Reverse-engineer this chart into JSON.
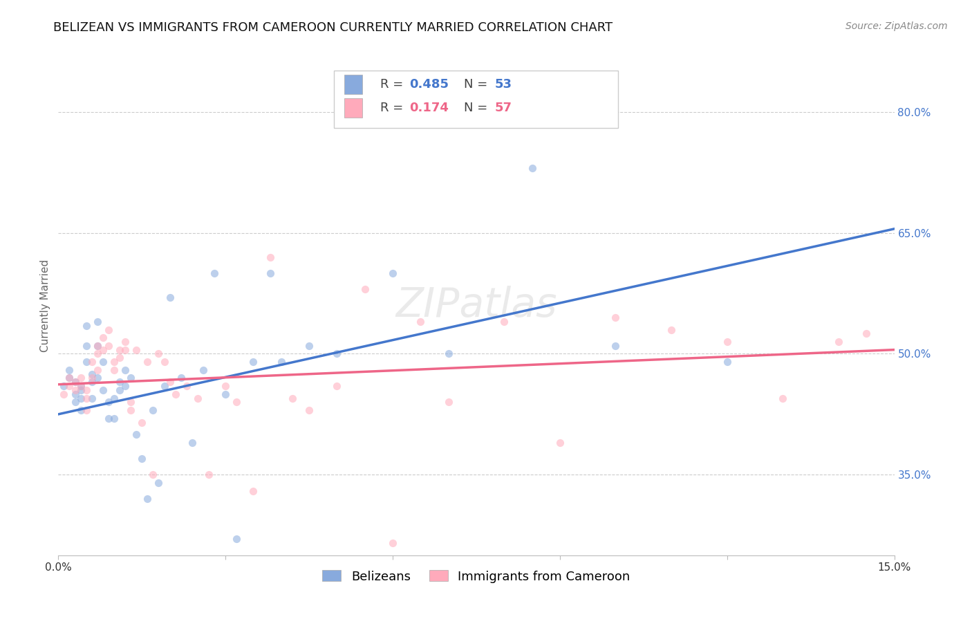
{
  "title": "BELIZEAN VS IMMIGRANTS FROM CAMEROON CURRENTLY MARRIED CORRELATION CHART",
  "source": "Source: ZipAtlas.com",
  "ylabel": "Currently Married",
  "xmin": 0.0,
  "xmax": 0.15,
  "ymin": 0.25,
  "ymax": 0.87,
  "yticks": [
    0.35,
    0.5,
    0.65,
    0.8
  ],
  "ytick_labels": [
    "35.0%",
    "50.0%",
    "65.0%",
    "80.0%"
  ],
  "grid_color": "#cccccc",
  "background_color": "#ffffff",
  "blue_color": "#88aadd",
  "pink_color": "#ffaabb",
  "blue_line_color": "#4477cc",
  "pink_line_color": "#ee6688",
  "blue_label": "Belizeans",
  "pink_label": "Immigrants from Cameroon",
  "blue_R": 0.485,
  "blue_N": 53,
  "pink_R": 0.174,
  "pink_N": 57,
  "blue_scatter_x": [
    0.001,
    0.002,
    0.002,
    0.003,
    0.003,
    0.003,
    0.004,
    0.004,
    0.004,
    0.004,
    0.005,
    0.005,
    0.005,
    0.006,
    0.006,
    0.006,
    0.007,
    0.007,
    0.007,
    0.008,
    0.008,
    0.009,
    0.009,
    0.01,
    0.01,
    0.011,
    0.011,
    0.012,
    0.012,
    0.013,
    0.014,
    0.015,
    0.016,
    0.017,
    0.018,
    0.019,
    0.02,
    0.022,
    0.024,
    0.026,
    0.028,
    0.03,
    0.032,
    0.035,
    0.038,
    0.04,
    0.045,
    0.05,
    0.06,
    0.07,
    0.085,
    0.1,
    0.12
  ],
  "blue_scatter_y": [
    0.46,
    0.47,
    0.48,
    0.465,
    0.45,
    0.44,
    0.46,
    0.455,
    0.445,
    0.43,
    0.535,
    0.51,
    0.49,
    0.475,
    0.465,
    0.445,
    0.54,
    0.51,
    0.47,
    0.49,
    0.455,
    0.44,
    0.42,
    0.445,
    0.42,
    0.465,
    0.455,
    0.48,
    0.46,
    0.47,
    0.4,
    0.37,
    0.32,
    0.43,
    0.34,
    0.46,
    0.57,
    0.47,
    0.39,
    0.48,
    0.6,
    0.45,
    0.27,
    0.49,
    0.6,
    0.49,
    0.51,
    0.5,
    0.6,
    0.5,
    0.73,
    0.51,
    0.49
  ],
  "pink_scatter_x": [
    0.001,
    0.002,
    0.002,
    0.003,
    0.003,
    0.004,
    0.004,
    0.005,
    0.005,
    0.005,
    0.006,
    0.006,
    0.007,
    0.007,
    0.007,
    0.008,
    0.008,
    0.009,
    0.009,
    0.01,
    0.01,
    0.011,
    0.011,
    0.012,
    0.012,
    0.013,
    0.013,
    0.014,
    0.015,
    0.016,
    0.017,
    0.018,
    0.019,
    0.02,
    0.021,
    0.023,
    0.025,
    0.027,
    0.03,
    0.032,
    0.035,
    0.038,
    0.042,
    0.045,
    0.05,
    0.055,
    0.06,
    0.065,
    0.07,
    0.08,
    0.09,
    0.1,
    0.11,
    0.12,
    0.13,
    0.14,
    0.145
  ],
  "pink_scatter_y": [
    0.45,
    0.46,
    0.47,
    0.465,
    0.455,
    0.47,
    0.46,
    0.455,
    0.445,
    0.43,
    0.49,
    0.47,
    0.51,
    0.5,
    0.48,
    0.52,
    0.505,
    0.53,
    0.51,
    0.49,
    0.48,
    0.505,
    0.495,
    0.515,
    0.505,
    0.44,
    0.43,
    0.505,
    0.415,
    0.49,
    0.35,
    0.5,
    0.49,
    0.465,
    0.45,
    0.46,
    0.445,
    0.35,
    0.46,
    0.44,
    0.33,
    0.62,
    0.445,
    0.43,
    0.46,
    0.58,
    0.265,
    0.54,
    0.44,
    0.54,
    0.39,
    0.545,
    0.53,
    0.515,
    0.445,
    0.515,
    0.525
  ],
  "blue_trend_x": [
    0.0,
    0.15
  ],
  "blue_trend_y": [
    0.425,
    0.655
  ],
  "pink_trend_x": [
    0.0,
    0.15
  ],
  "pink_trend_y": [
    0.462,
    0.505
  ],
  "title_fontsize": 13,
  "axis_label_fontsize": 11,
  "tick_fontsize": 11,
  "legend_fontsize": 13,
  "source_fontsize": 10,
  "scatter_size": 65,
  "scatter_alpha": 0.55,
  "line_width": 2.5
}
